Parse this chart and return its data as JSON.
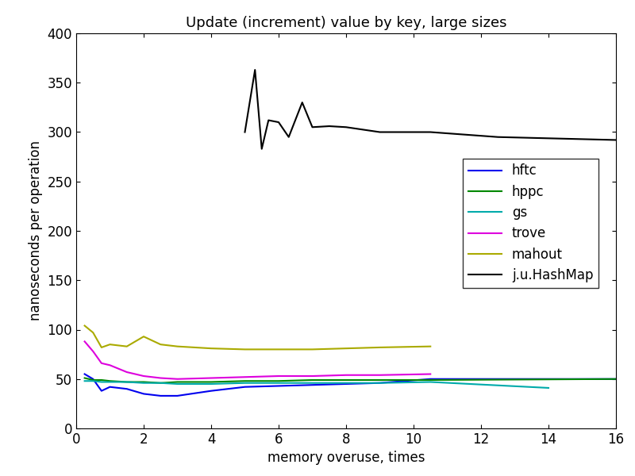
{
  "title": "Update (increment) value by key, large sizes",
  "xlabel": "memory overuse, times",
  "ylabel": "nanoseconds per operation",
  "xlim": [
    0,
    16
  ],
  "ylim": [
    0,
    400
  ],
  "xticks": [
    0,
    2,
    4,
    6,
    8,
    10,
    12,
    14,
    16
  ],
  "yticks": [
    0,
    50,
    100,
    150,
    200,
    250,
    300,
    350,
    400
  ],
  "series": [
    {
      "label": "hftc",
      "color": "#0000ee",
      "x": [
        0.25,
        0.5,
        0.75,
        1.0,
        1.5,
        2.0,
        2.5,
        3.0,
        4.0,
        5.0,
        6.0,
        7.0,
        8.0,
        9.0,
        10.5,
        16.0
      ],
      "y": [
        55,
        50,
        38,
        42,
        40,
        35,
        33,
        33,
        38,
        42,
        43,
        44,
        45,
        46,
        50,
        50
      ]
    },
    {
      "label": "hppc",
      "color": "#008800",
      "x": [
        0.25,
        0.5,
        0.75,
        1.0,
        1.5,
        2.0,
        2.5,
        3.0,
        4.0,
        5.0,
        6.0,
        7.0,
        8.0,
        9.0,
        10.5,
        16.0
      ],
      "y": [
        51,
        49,
        49,
        48,
        47,
        47,
        46,
        47,
        47,
        48,
        48,
        49,
        49,
        49,
        49,
        50
      ]
    },
    {
      "label": "gs",
      "color": "#00aaaa",
      "x": [
        0.25,
        0.5,
        0.75,
        1.0,
        1.5,
        2.0,
        2.5,
        3.0,
        4.0,
        5.0,
        6.0,
        7.0,
        8.0,
        9.0,
        10.5,
        14.0
      ],
      "y": [
        48,
        48,
        47,
        47,
        47,
        46,
        46,
        45,
        45,
        46,
        46,
        46,
        46,
        46,
        47,
        41
      ]
    },
    {
      "label": "trove",
      "color": "#dd00dd",
      "x": [
        0.25,
        0.5,
        0.75,
        1.0,
        1.5,
        2.0,
        2.5,
        3.0,
        4.0,
        5.0,
        6.0,
        7.0,
        8.0,
        9.0,
        10.5
      ],
      "y": [
        88,
        78,
        66,
        64,
        57,
        53,
        51,
        50,
        51,
        52,
        53,
        53,
        54,
        54,
        55
      ]
    },
    {
      "label": "mahout",
      "color": "#aaaa00",
      "x": [
        0.25,
        0.5,
        0.75,
        1.0,
        1.5,
        2.0,
        2.5,
        3.0,
        4.0,
        5.0,
        6.0,
        7.0,
        8.0,
        9.0,
        10.5
      ],
      "y": [
        104,
        97,
        82,
        85,
        83,
        93,
        85,
        83,
        81,
        80,
        80,
        80,
        81,
        82,
        83
      ]
    },
    {
      "label": "j.u.HashMap",
      "color": "#000000",
      "x": [
        5.0,
        5.3,
        5.5,
        5.7,
        6.0,
        6.3,
        6.7,
        7.0,
        7.5,
        8.0,
        9.0,
        10.5,
        12.5,
        16.0
      ],
      "y": [
        300,
        363,
        283,
        312,
        310,
        295,
        330,
        305,
        306,
        305,
        300,
        300,
        295,
        292
      ]
    }
  ],
  "background_color": "#ffffff",
  "figure_size": [
    8.0,
    6.0
  ],
  "dpi": 100
}
